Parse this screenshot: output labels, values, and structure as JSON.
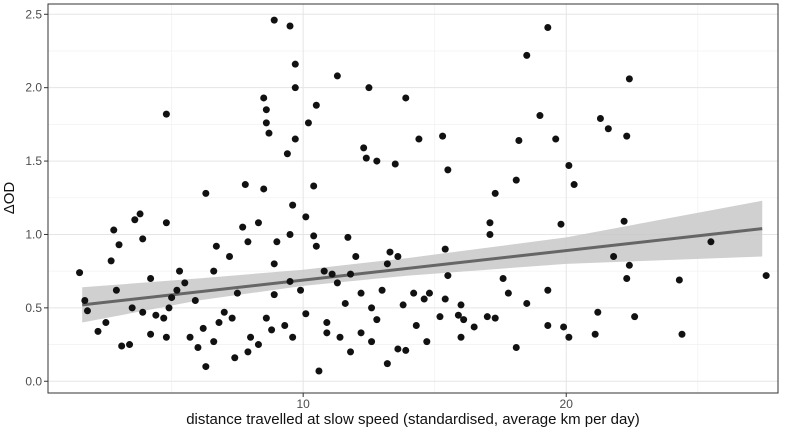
{
  "chart_data": {
    "type": "scatter",
    "x_label": "distance travelled at slow speed (standardised, average km per day)",
    "y_label": "ΔOD",
    "xlim": [
      0.3,
      28.05
    ],
    "ylim": [
      -0.08,
      2.57
    ],
    "xticks": [
      10,
      20
    ],
    "yticks": [
      {
        "value": 0,
        "label": "0.0"
      },
      0.5,
      {
        "value": 1,
        "label": "1.0"
      },
      1.5,
      {
        "value": 2,
        "label": "2.0"
      },
      2.5
    ],
    "x_minor_grid": [
      5,
      15,
      25
    ],
    "y_minor_grid": [
      0.25,
      0.75,
      1.25,
      1.75,
      2.25
    ],
    "grid": true,
    "color": "#111111",
    "x": [
      8.9,
      9.5,
      9.7,
      9.7,
      9.4,
      9.7,
      8.5,
      8.6,
      8.6,
      8.7,
      4.8,
      11.3,
      12.5,
      10.2,
      10.5,
      13.9,
      12.3,
      12.4,
      12.8,
      13.5,
      14.4,
      15.3,
      15.5,
      10.4,
      9.6,
      8.5,
      7.8,
      6.3,
      18.5,
      19.3,
      19.0,
      18.2,
      19.6,
      21.3,
      21.6,
      22.3,
      22.4,
      20.1,
      20.3,
      17.3,
      18.1,
      17.1,
      17.1,
      19.8,
      22.2,
      25.5,
      27.6,
      24.3,
      24.4,
      22.6,
      22.4,
      21.8,
      21.2,
      21.1,
      22.3,
      19.9,
      20.1,
      19.3,
      19.3,
      18.5,
      18.1,
      17.6,
      17.3,
      17.0,
      16.5,
      15.4,
      15.5,
      15.9,
      16.1,
      16.0,
      15.2,
      14.8,
      15.4,
      14.6,
      14.3,
      14.7,
      13.9,
      13.6,
      13.8,
      13.3,
      13.6,
      13.2,
      13.0,
      12.6,
      12.8,
      12.2,
      11.8,
      11.6,
      11.3,
      11.1,
      10.8,
      10.4,
      10.5,
      10.1,
      9.5,
      9.0,
      8.9,
      9.5,
      9.9,
      10.1,
      10.9,
      11.4,
      11.8,
      12.2,
      12.6,
      13.2,
      10.6,
      10.9,
      9.6,
      9.3,
      8.8,
      8.6,
      8.9,
      8.3,
      7.7,
      7.9,
      7.5,
      7.3,
      7.0,
      6.8,
      6.6,
      6.3,
      6.2,
      5.9,
      5.5,
      5.2,
      4.9,
      4.7,
      4.4,
      4.2,
      3.9,
      3.5,
      3.4,
      3.1,
      2.9,
      2.7,
      2.8,
      3.0,
      3.6,
      3.8,
      3.9,
      4.2,
      4.8,
      5.3,
      2.5,
      2.2,
      1.8,
      1.5,
      1.7,
      7.9,
      7.4,
      8.3,
      8.0,
      5.7,
      6.0,
      4.8,
      5.0,
      6.7,
      7.2,
      6.6,
      11.7,
      12.0,
      14.2,
      16.0,
      17.8
    ],
    "y": [
      2.46,
      2.42,
      2.16,
      2.0,
      1.55,
      1.65,
      1.93,
      1.85,
      1.76,
      1.69,
      1.82,
      2.08,
      2.0,
      1.76,
      1.88,
      1.93,
      1.59,
      1.52,
      1.5,
      1.48,
      1.65,
      1.67,
      1.44,
      1.33,
      1.2,
      1.31,
      1.34,
      1.28,
      2.22,
      2.41,
      1.81,
      1.64,
      1.65,
      1.79,
      1.72,
      1.67,
      2.06,
      1.47,
      1.34,
      1.28,
      1.37,
      1.08,
      1.0,
      1.07,
      1.09,
      0.95,
      0.72,
      0.69,
      0.32,
      0.44,
      0.79,
      0.85,
      0.47,
      0.32,
      0.7,
      0.37,
      0.3,
      0.62,
      0.38,
      0.53,
      0.23,
      0.7,
      0.43,
      0.44,
      0.37,
      0.9,
      0.72,
      0.45,
      0.42,
      0.3,
      0.44,
      0.6,
      0.56,
      0.56,
      0.38,
      0.27,
      0.21,
      0.22,
      0.52,
      0.88,
      0.85,
      0.8,
      0.62,
      0.5,
      0.42,
      0.6,
      0.73,
      0.53,
      0.67,
      0.73,
      0.75,
      0.99,
      0.92,
      1.12,
      1.0,
      0.95,
      0.8,
      0.68,
      0.62,
      0.46,
      0.4,
      0.3,
      0.2,
      0.33,
      0.27,
      0.12,
      0.07,
      0.33,
      0.3,
      0.38,
      0.35,
      0.43,
      0.59,
      1.08,
      1.05,
      0.95,
      0.6,
      0.43,
      0.47,
      0.4,
      0.27,
      0.1,
      0.36,
      0.55,
      0.67,
      0.62,
      0.5,
      0.43,
      0.45,
      0.32,
      0.47,
      0.5,
      0.25,
      0.24,
      0.62,
      0.82,
      1.03,
      0.93,
      1.1,
      1.14,
      0.97,
      0.7,
      1.08,
      0.75,
      0.4,
      0.34,
      0.48,
      0.74,
      0.55,
      0.2,
      0.16,
      0.25,
      0.3,
      0.3,
      0.23,
      0.3,
      0.57,
      0.92,
      0.85,
      0.75,
      0.98,
      0.85,
      0.6,
      0.52,
      0.6
    ],
    "fit": {
      "x": [
        1.6,
        27.45
      ],
      "y": [
        0.52,
        1.04
      ],
      "color": "#666666"
    },
    "band": {
      "x": [
        1.6,
        6,
        10,
        14,
        20,
        27.45
      ],
      "lower": [
        0.4,
        0.55,
        0.65,
        0.72,
        0.8,
        0.85
      ],
      "upper": [
        0.64,
        0.7,
        0.76,
        0.84,
        0.98,
        1.23
      ],
      "color": "#c8c8c8"
    }
  }
}
